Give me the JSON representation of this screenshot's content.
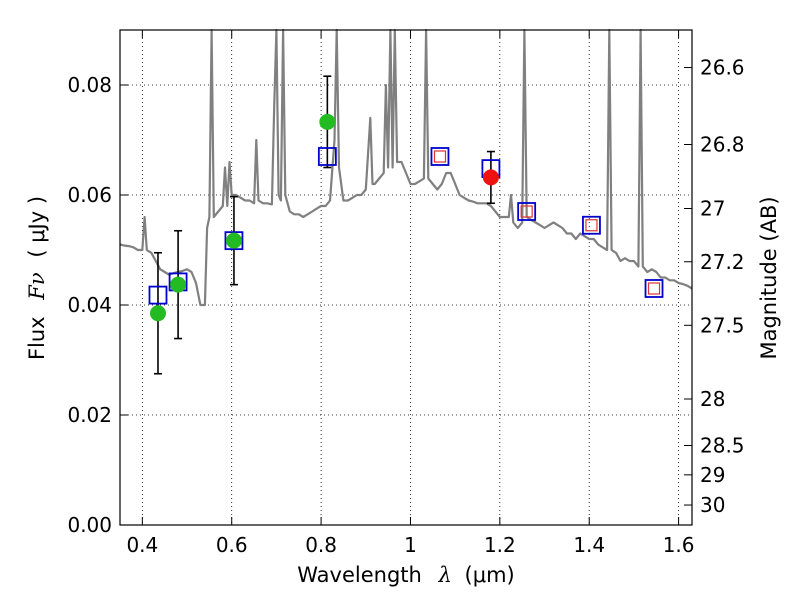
{
  "chart_data": {
    "type": "scatter",
    "xlabel": "Wavelength",
    "xlabel_symbol": "λ",
    "xlabel_unit": "(μm)",
    "ylabel": "Flux",
    "ylabel_symbol": "Fν",
    "ylabel_unit": "( μJy )",
    "y2label": "Magnitude (AB)",
    "xlim": [
      0.35,
      1.63
    ],
    "ylim": [
      0.0,
      0.09
    ],
    "grid": true,
    "x_ticks": [
      0.4,
      0.6,
      0.8,
      1.0,
      1.2,
      1.4,
      1.6
    ],
    "x_tick_labels": [
      "0.4",
      "0.6",
      "0.8",
      "1",
      "1.2",
      "1.4",
      "1.6"
    ],
    "y_ticks": [
      0.0,
      0.02,
      0.04,
      0.06,
      0.08
    ],
    "y_tick_labels": [
      "0.00",
      "0.02",
      "0.04",
      "0.06",
      "0.08"
    ],
    "mag_ticks": [
      "26.6",
      "26.8",
      "27",
      "27.2",
      "27.5",
      "28",
      "28.5",
      "29",
      "30"
    ],
    "colors": {
      "spectrum": "#808080",
      "observed": "#22bb22",
      "highlight": "#ee1111",
      "model_box": "#0000cc",
      "model_inner": "#dd3333",
      "errorbar": "#000000"
    },
    "spectrum": [
      [
        0.35,
        0.051
      ],
      [
        0.36,
        0.0508
      ],
      [
        0.37,
        0.0507
      ],
      [
        0.38,
        0.0505
      ],
      [
        0.39,
        0.05
      ],
      [
        0.4,
        0.05
      ],
      [
        0.405,
        0.056
      ],
      [
        0.41,
        0.05
      ],
      [
        0.42,
        0.0495
      ],
      [
        0.43,
        0.048
      ],
      [
        0.44,
        0.0465
      ],
      [
        0.45,
        0.046
      ],
      [
        0.46,
        0.0455
      ],
      [
        0.47,
        0.0458
      ],
      [
        0.48,
        0.046
      ],
      [
        0.49,
        0.0462
      ],
      [
        0.5,
        0.0465
      ],
      [
        0.51,
        0.046
      ],
      [
        0.52,
        0.044
      ],
      [
        0.53,
        0.04
      ],
      [
        0.54,
        0.04
      ],
      [
        0.545,
        0.054
      ],
      [
        0.55,
        0.056
      ],
      [
        0.555,
        0.09
      ],
      [
        0.56,
        0.056
      ],
      [
        0.57,
        0.057
      ],
      [
        0.58,
        0.058
      ],
      [
        0.585,
        0.065
      ],
      [
        0.59,
        0.058
      ],
      [
        0.595,
        0.066
      ],
      [
        0.6,
        0.06
      ],
      [
        0.61,
        0.06
      ],
      [
        0.62,
        0.0595
      ],
      [
        0.63,
        0.059
      ],
      [
        0.64,
        0.059
      ],
      [
        0.65,
        0.0585
      ],
      [
        0.655,
        0.07
      ],
      [
        0.66,
        0.059
      ],
      [
        0.67,
        0.0585
      ],
      [
        0.68,
        0.0585
      ],
      [
        0.69,
        0.0583
      ],
      [
        0.695,
        0.076
      ],
      [
        0.7,
        0.09
      ],
      [
        0.705,
        0.06
      ],
      [
        0.71,
        0.059
      ],
      [
        0.715,
        0.09
      ],
      [
        0.72,
        0.06
      ],
      [
        0.73,
        0.057
      ],
      [
        0.74,
        0.0565
      ],
      [
        0.75,
        0.0565
      ],
      [
        0.76,
        0.056
      ],
      [
        0.77,
        0.0565
      ],
      [
        0.78,
        0.057
      ],
      [
        0.79,
        0.0575
      ],
      [
        0.8,
        0.058
      ],
      [
        0.81,
        0.058
      ],
      [
        0.82,
        0.059
      ],
      [
        0.83,
        0.07
      ],
      [
        0.835,
        0.09
      ],
      [
        0.84,
        0.065
      ],
      [
        0.85,
        0.059
      ],
      [
        0.86,
        0.059
      ],
      [
        0.87,
        0.0595
      ],
      [
        0.88,
        0.06
      ],
      [
        0.89,
        0.06
      ],
      [
        0.9,
        0.061
      ],
      [
        0.91,
        0.074
      ],
      [
        0.915,
        0.062
      ],
      [
        0.92,
        0.062
      ],
      [
        0.93,
        0.063
      ],
      [
        0.94,
        0.064
      ],
      [
        0.945,
        0.08
      ],
      [
        0.95,
        0.065
      ],
      [
        0.955,
        0.09
      ],
      [
        0.96,
        0.065
      ],
      [
        0.965,
        0.09
      ],
      [
        0.97,
        0.066
      ],
      [
        0.98,
        0.066
      ],
      [
        0.99,
        0.064
      ],
      [
        1.0,
        0.062
      ],
      [
        1.01,
        0.062
      ],
      [
        1.02,
        0.0625
      ],
      [
        1.03,
        0.063
      ],
      [
        1.035,
        0.09
      ],
      [
        1.04,
        0.063
      ],
      [
        1.05,
        0.062
      ],
      [
        1.06,
        0.061
      ],
      [
        1.07,
        0.062
      ],
      [
        1.08,
        0.064
      ],
      [
        1.09,
        0.064
      ],
      [
        1.1,
        0.062
      ],
      [
        1.11,
        0.06
      ],
      [
        1.12,
        0.0595
      ],
      [
        1.13,
        0.059
      ],
      [
        1.14,
        0.0588
      ],
      [
        1.15,
        0.0585
      ],
      [
        1.16,
        0.0585
      ],
      [
        1.17,
        0.0585
      ],
      [
        1.18,
        0.058
      ],
      [
        1.19,
        0.057
      ],
      [
        1.2,
        0.056
      ],
      [
        1.21,
        0.056
      ],
      [
        1.22,
        0.056
      ],
      [
        1.225,
        0.06
      ],
      [
        1.23,
        0.055
      ],
      [
        1.24,
        0.054
      ],
      [
        1.25,
        0.055
      ],
      [
        1.255,
        0.09
      ],
      [
        1.26,
        0.056
      ],
      [
        1.27,
        0.0555
      ],
      [
        1.28,
        0.055
      ],
      [
        1.29,
        0.0545
      ],
      [
        1.3,
        0.054
      ],
      [
        1.31,
        0.0545
      ],
      [
        1.32,
        0.055
      ],
      [
        1.33,
        0.0545
      ],
      [
        1.34,
        0.054
      ],
      [
        1.35,
        0.053
      ],
      [
        1.36,
        0.053
      ],
      [
        1.37,
        0.052
      ],
      [
        1.38,
        0.053
      ],
      [
        1.39,
        0.0525
      ],
      [
        1.4,
        0.052
      ],
      [
        1.41,
        0.052
      ],
      [
        1.42,
        0.051
      ],
      [
        1.43,
        0.0505
      ],
      [
        1.44,
        0.05
      ],
      [
        1.445,
        0.09
      ],
      [
        1.45,
        0.05
      ],
      [
        1.46,
        0.0495
      ],
      [
        1.47,
        0.048
      ],
      [
        1.48,
        0.0485
      ],
      [
        1.49,
        0.048
      ],
      [
        1.5,
        0.048
      ],
      [
        1.51,
        0.047
      ],
      [
        1.515,
        0.09
      ],
      [
        1.52,
        0.047
      ],
      [
        1.53,
        0.046
      ],
      [
        1.54,
        0.0465
      ],
      [
        1.55,
        0.046
      ],
      [
        1.56,
        0.045
      ],
      [
        1.57,
        0.045
      ],
      [
        1.58,
        0.0445
      ],
      [
        1.59,
        0.0445
      ],
      [
        1.6,
        0.044
      ],
      [
        1.61,
        0.0438
      ],
      [
        1.62,
        0.0435
      ],
      [
        1.63,
        0.043
      ]
    ],
    "observed": [
      {
        "x": 0.435,
        "y": 0.0385,
        "yerr": 0.011
      },
      {
        "x": 0.48,
        "y": 0.0437,
        "yerr": 0.0098
      },
      {
        "x": 0.605,
        "y": 0.0517,
        "yerr": 0.008
      },
      {
        "x": 0.814,
        "y": 0.0733,
        "yerr": 0.0083
      }
    ],
    "highlight": [
      {
        "x": 1.18,
        "y": 0.0632,
        "yerr": 0.0047
      }
    ],
    "model": [
      {
        "x": 0.435,
        "y": 0.0418
      },
      {
        "x": 0.48,
        "y": 0.0442
      },
      {
        "x": 0.605,
        "y": 0.0517
      },
      {
        "x": 0.814,
        "y": 0.067
      },
      {
        "x": 1.066,
        "y": 0.067
      },
      {
        "x": 1.18,
        "y": 0.0648
      },
      {
        "x": 1.26,
        "y": 0.057
      },
      {
        "x": 1.405,
        "y": 0.0545
      },
      {
        "x": 1.545,
        "y": 0.043
      }
    ],
    "model_inner_marked": [
      4,
      6,
      7,
      8
    ]
  }
}
